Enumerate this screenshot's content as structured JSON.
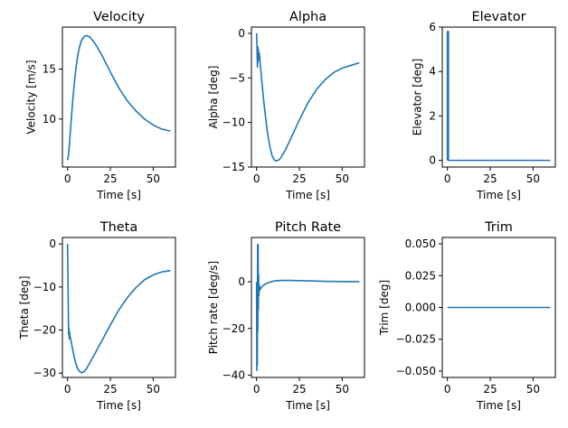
{
  "chart_data": [
    {
      "type": "line",
      "title": "Velocity",
      "xlabel": "Time [s]",
      "ylabel": "Velocity [m/s]",
      "xlim": [
        -3,
        63
      ],
      "ylim": [
        5.2,
        19.2
      ],
      "xticks": [
        0,
        25,
        50
      ],
      "yticks": [
        10,
        15
      ],
      "grid": false,
      "series": [
        {
          "x": [
            0,
            0.5,
            1,
            2,
            3,
            4,
            5,
            6,
            7,
            8,
            9,
            10,
            11,
            12,
            13,
            14,
            15,
            17,
            20,
            25,
            30,
            35,
            40,
            45,
            50,
            55,
            60
          ],
          "y": [
            5.9,
            6.3,
            7.3,
            9.6,
            11.8,
            13.7,
            15.2,
            16.4,
            17.2,
            17.8,
            18.1,
            18.3,
            18.35,
            18.3,
            18.2,
            18.0,
            17.8,
            17.3,
            16.4,
            14.7,
            13.1,
            11.8,
            10.8,
            10.0,
            9.4,
            9.0,
            8.8
          ]
        }
      ]
    },
    {
      "type": "line",
      "title": "Alpha",
      "xlabel": "Time [s]",
      "ylabel": "Alpha [deg]",
      "xlim": [
        -3,
        63
      ],
      "ylim": [
        -15,
        0.7
      ],
      "xticks": [
        0,
        25,
        50
      ],
      "yticks": [
        0,
        -5,
        -10,
        -15
      ],
      "grid": false,
      "series": [
        {
          "x": [
            0,
            0.2,
            0.5,
            0.7,
            0.9,
            1.1,
            1.3,
            1.5,
            1.8,
            2,
            3,
            4,
            5,
            6,
            7,
            8,
            9,
            10,
            11,
            12,
            13,
            14,
            15,
            17,
            20,
            25,
            30,
            35,
            40,
            45,
            50,
            55,
            60
          ],
          "y": [
            0,
            -1.2,
            -3.8,
            -1.5,
            -3.2,
            -1.8,
            -2.8,
            -2.2,
            -2.6,
            -3.2,
            -5.2,
            -7.3,
            -9.0,
            -10.6,
            -11.9,
            -12.9,
            -13.7,
            -14.1,
            -14.3,
            -14.3,
            -14.2,
            -14.0,
            -13.7,
            -13.0,
            -11.8,
            -9.7,
            -7.8,
            -6.3,
            -5.2,
            -4.4,
            -3.9,
            -3.6,
            -3.3
          ]
        }
      ]
    },
    {
      "type": "line",
      "title": "Elevator",
      "xlabel": "Time [s]",
      "ylabel": "Elevator [deg]",
      "xlim": [
        -3,
        63
      ],
      "ylim": [
        -0.3,
        6.0
      ],
      "xticks": [
        0,
        25,
        50
      ],
      "yticks": [
        0,
        2,
        4,
        6
      ],
      "grid": false,
      "series": [
        {
          "x": [
            0,
            0,
            0.6,
            0.6,
            1.2,
            60
          ],
          "y": [
            0,
            5.8,
            5.8,
            0,
            0,
            0
          ]
        }
      ]
    },
    {
      "type": "line",
      "title": "Theta",
      "xlabel": "Time [s]",
      "ylabel": "Theta [deg]",
      "xlim": [
        -3,
        63
      ],
      "ylim": [
        -31,
        1.5
      ],
      "xticks": [
        0,
        25,
        50
      ],
      "yticks": [
        0,
        -10,
        -20,
        -30
      ],
      "grid": false,
      "series": [
        {
          "x": [
            0,
            0.3,
            0.6,
            0.8,
            1,
            1.2,
            1.5,
            2,
            3,
            4,
            5,
            6,
            7,
            8,
            9,
            10,
            11,
            12,
            13,
            15,
            17,
            20,
            25,
            30,
            35,
            40,
            45,
            50,
            55,
            60
          ],
          "y": [
            0,
            -10,
            -21,
            -19.5,
            -22,
            -20.5,
            -21.5,
            -22.5,
            -24.5,
            -26.5,
            -28,
            -29,
            -29.6,
            -29.9,
            -29.8,
            -29.5,
            -29.0,
            -28.3,
            -27.6,
            -26.2,
            -24.7,
            -22.5,
            -18.8,
            -15.3,
            -12.4,
            -10.1,
            -8.3,
            -7.2,
            -6.5,
            -6.2
          ]
        }
      ]
    },
    {
      "type": "line",
      "title": "Pitch Rate",
      "xlabel": "Time [s]",
      "ylabel": "Pitch rate [deg/s]",
      "xlim": [
        -3,
        63
      ],
      "ylim": [
        -41,
        19
      ],
      "xticks": [
        0,
        25,
        50
      ],
      "yticks": [
        0,
        -20,
        -40
      ],
      "grid": false,
      "series": [
        {
          "x": [
            0,
            0.15,
            0.3,
            0.45,
            0.6,
            0.75,
            0.9,
            1.05,
            1.2,
            1.35,
            1.5,
            1.7,
            2,
            3,
            4,
            5,
            6,
            8,
            10,
            12,
            15,
            20,
            25,
            30,
            40,
            50,
            60
          ],
          "y": [
            0,
            -38,
            -2,
            -36,
            16,
            -21,
            16,
            -12,
            3,
            -6,
            -3,
            -1.5,
            -3.5,
            -2.2,
            -1.5,
            -1.0,
            -0.6,
            -0.1,
            0.3,
            0.5,
            0.6,
            0.6,
            0.5,
            0.4,
            0.2,
            0.1,
            0.05
          ]
        }
      ]
    },
    {
      "type": "line",
      "title": "Trim",
      "xlabel": "Time [s]",
      "ylabel": "Trim [deg]",
      "xlim": [
        -3,
        63
      ],
      "ylim": [
        -0.055,
        0.055
      ],
      "xticks": [
        0,
        25,
        50
      ],
      "yticks": [
        0.05,
        0.025,
        0,
        -0.025,
        -0.05
      ],
      "ytick_labels": [
        "0.050",
        "0.025",
        "0.000",
        "−0.025",
        "−0.050"
      ],
      "grid": false,
      "series": [
        {
          "x": [
            0,
            60
          ],
          "y": [
            0,
            0
          ]
        }
      ]
    }
  ]
}
